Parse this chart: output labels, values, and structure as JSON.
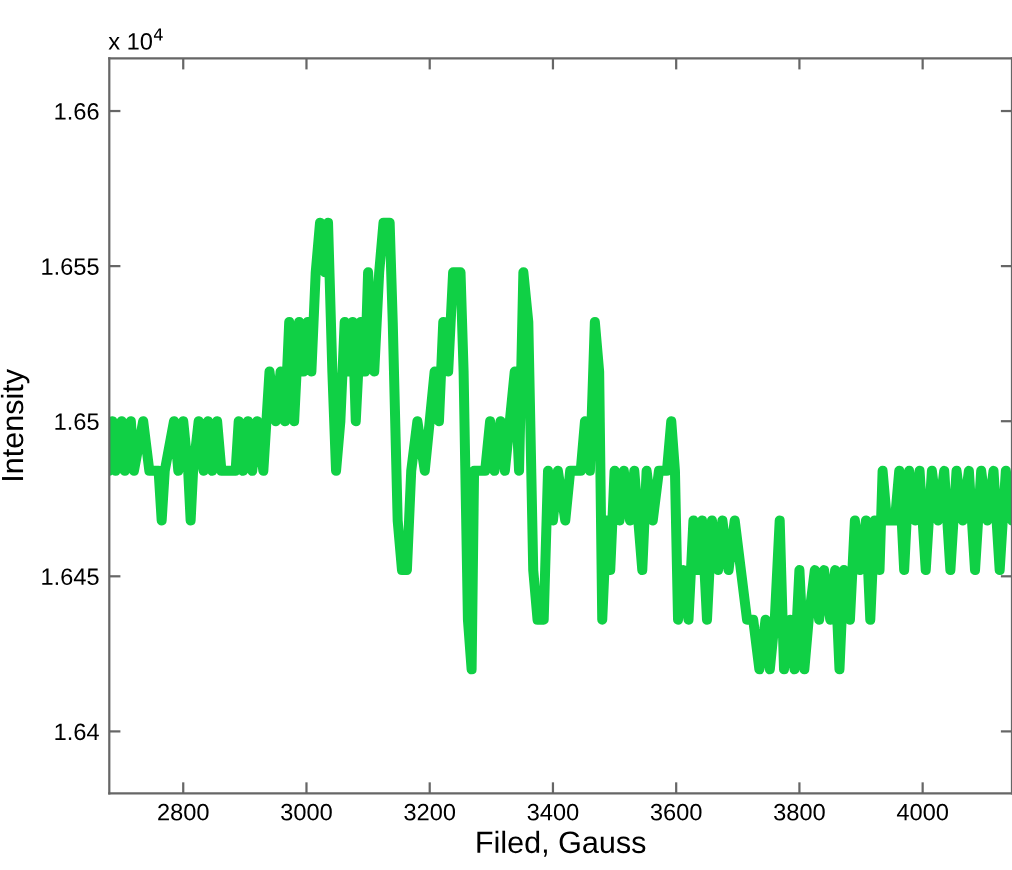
{
  "chart_data": {
    "type": "line",
    "xlabel": "Filed, Gauss",
    "ylabel": "Intensity",
    "annotations": [
      "x 10$^{4}$"
    ],
    "xlim": [
      2680,
      4145
    ],
    "xticks": [
      2800,
      3000,
      3200,
      3400,
      3600,
      3800,
      4000
    ],
    "ylim": [
      1.638,
      1.6617
    ],
    "yticks": [
      1.64,
      1.645,
      1.65,
      1.655,
      1.66
    ],
    "grid": false,
    "marker": "none",
    "line_style": "solid",
    "series": [
      {
        "color": "#10d045",
        "x": [
          2680,
          2685,
          2690,
          2700,
          2705,
          2715,
          2720,
          2735,
          2745,
          2760,
          2765,
          2770,
          2785,
          2792,
          2800,
          2808,
          2812,
          2816,
          2825,
          2833,
          2840,
          2847,
          2855,
          2862,
          2885,
          2890,
          2897,
          2905,
          2912,
          2920,
          2930,
          2940,
          2950,
          2958,
          2965,
          2972,
          2980,
          2988,
          2995,
          3002,
          3008,
          3015,
          3022,
          3030,
          3035,
          3042,
          3048,
          3055,
          3062,
          3068,
          3075,
          3080,
          3088,
          3095,
          3100,
          3110,
          3118,
          3125,
          3135,
          3140,
          3148,
          3155,
          3163,
          3170,
          3180,
          3192,
          3200,
          3208,
          3215,
          3222,
          3230,
          3238,
          3250,
          3255,
          3262,
          3268,
          3272,
          3290,
          3298,
          3305,
          3315,
          3322,
          3330,
          3338,
          3345,
          3352,
          3360,
          3368,
          3375,
          3385,
          3392,
          3400,
          3408,
          3420,
          3428,
          3445,
          3452,
          3460,
          3468,
          3475,
          3480,
          3487,
          3493,
          3500,
          3508,
          3515,
          3525,
          3532,
          3545,
          3552,
          3562,
          3572,
          3585,
          3592,
          3598,
          3603,
          3612,
          3620,
          3628,
          3635,
          3642,
          3650,
          3658,
          3668,
          3675,
          3685,
          3695,
          3705,
          3715,
          3725,
          3735,
          3745,
          3752,
          3760,
          3768,
          3775,
          3785,
          3792,
          3800,
          3808,
          3815,
          3825,
          3832,
          3840,
          3850,
          3858,
          3865,
          3872,
          3882,
          3890,
          3898,
          3908,
          3915,
          3922,
          3930,
          3935,
          3942,
          3955,
          3962,
          3970,
          3978,
          3988,
          3995,
          4005,
          4015,
          4025,
          4035,
          4045,
          4055,
          4065,
          4075,
          4085,
          4095,
          4105,
          4115,
          4125,
          4135,
          4145
        ],
        "values": [
          1.6484,
          1.65,
          1.6484,
          1.65,
          1.6484,
          1.65,
          1.6484,
          1.65,
          1.6484,
          1.6484,
          1.6468,
          1.6484,
          1.65,
          1.6484,
          1.65,
          1.6484,
          1.6468,
          1.6484,
          1.65,
          1.6484,
          1.65,
          1.6484,
          1.65,
          1.6484,
          1.6484,
          1.65,
          1.6484,
          1.65,
          1.6484,
          1.65,
          1.6484,
          1.6516,
          1.65,
          1.6516,
          1.65,
          1.6532,
          1.65,
          1.6532,
          1.6516,
          1.6532,
          1.6516,
          1.6548,
          1.6564,
          1.6548,
          1.6564,
          1.6516,
          1.6484,
          1.65,
          1.6532,
          1.6516,
          1.6532,
          1.65,
          1.6532,
          1.6516,
          1.6548,
          1.6516,
          1.6548,
          1.6564,
          1.6564,
          1.6532,
          1.6468,
          1.6452,
          1.6452,
          1.6484,
          1.65,
          1.6484,
          1.65,
          1.6516,
          1.65,
          1.6532,
          1.6516,
          1.6548,
          1.6548,
          1.6516,
          1.6436,
          1.642,
          1.6484,
          1.6484,
          1.65,
          1.6484,
          1.65,
          1.6484,
          1.65,
          1.6516,
          1.6484,
          1.6548,
          1.6532,
          1.6452,
          1.6436,
          1.6436,
          1.6484,
          1.6468,
          1.6484,
          1.6468,
          1.6484,
          1.6484,
          1.65,
          1.6484,
          1.6532,
          1.6516,
          1.6436,
          1.6468,
          1.6452,
          1.6484,
          1.6468,
          1.6484,
          1.6468,
          1.6484,
          1.6452,
          1.6484,
          1.6468,
          1.6484,
          1.6484,
          1.65,
          1.6484,
          1.6436,
          1.6452,
          1.6436,
          1.6468,
          1.6452,
          1.6468,
          1.6436,
          1.6468,
          1.6452,
          1.6468,
          1.6452,
          1.6468,
          1.6452,
          1.6436,
          1.6436,
          1.642,
          1.6436,
          1.642,
          1.6436,
          1.6468,
          1.642,
          1.6436,
          1.642,
          1.6452,
          1.642,
          1.6436,
          1.6452,
          1.6436,
          1.6452,
          1.6436,
          1.6452,
          1.642,
          1.6452,
          1.6436,
          1.6468,
          1.6452,
          1.6468,
          1.6436,
          1.6468,
          1.6452,
          1.6484,
          1.6468,
          1.6468,
          1.6484,
          1.6452,
          1.6484,
          1.6468,
          1.6484,
          1.6452,
          1.6484,
          1.6468,
          1.6484,
          1.6452,
          1.6484,
          1.6468,
          1.6484,
          1.6452,
          1.6484,
          1.6468,
          1.6484,
          1.6452,
          1.6484,
          1.6468
        ]
      }
    ]
  }
}
